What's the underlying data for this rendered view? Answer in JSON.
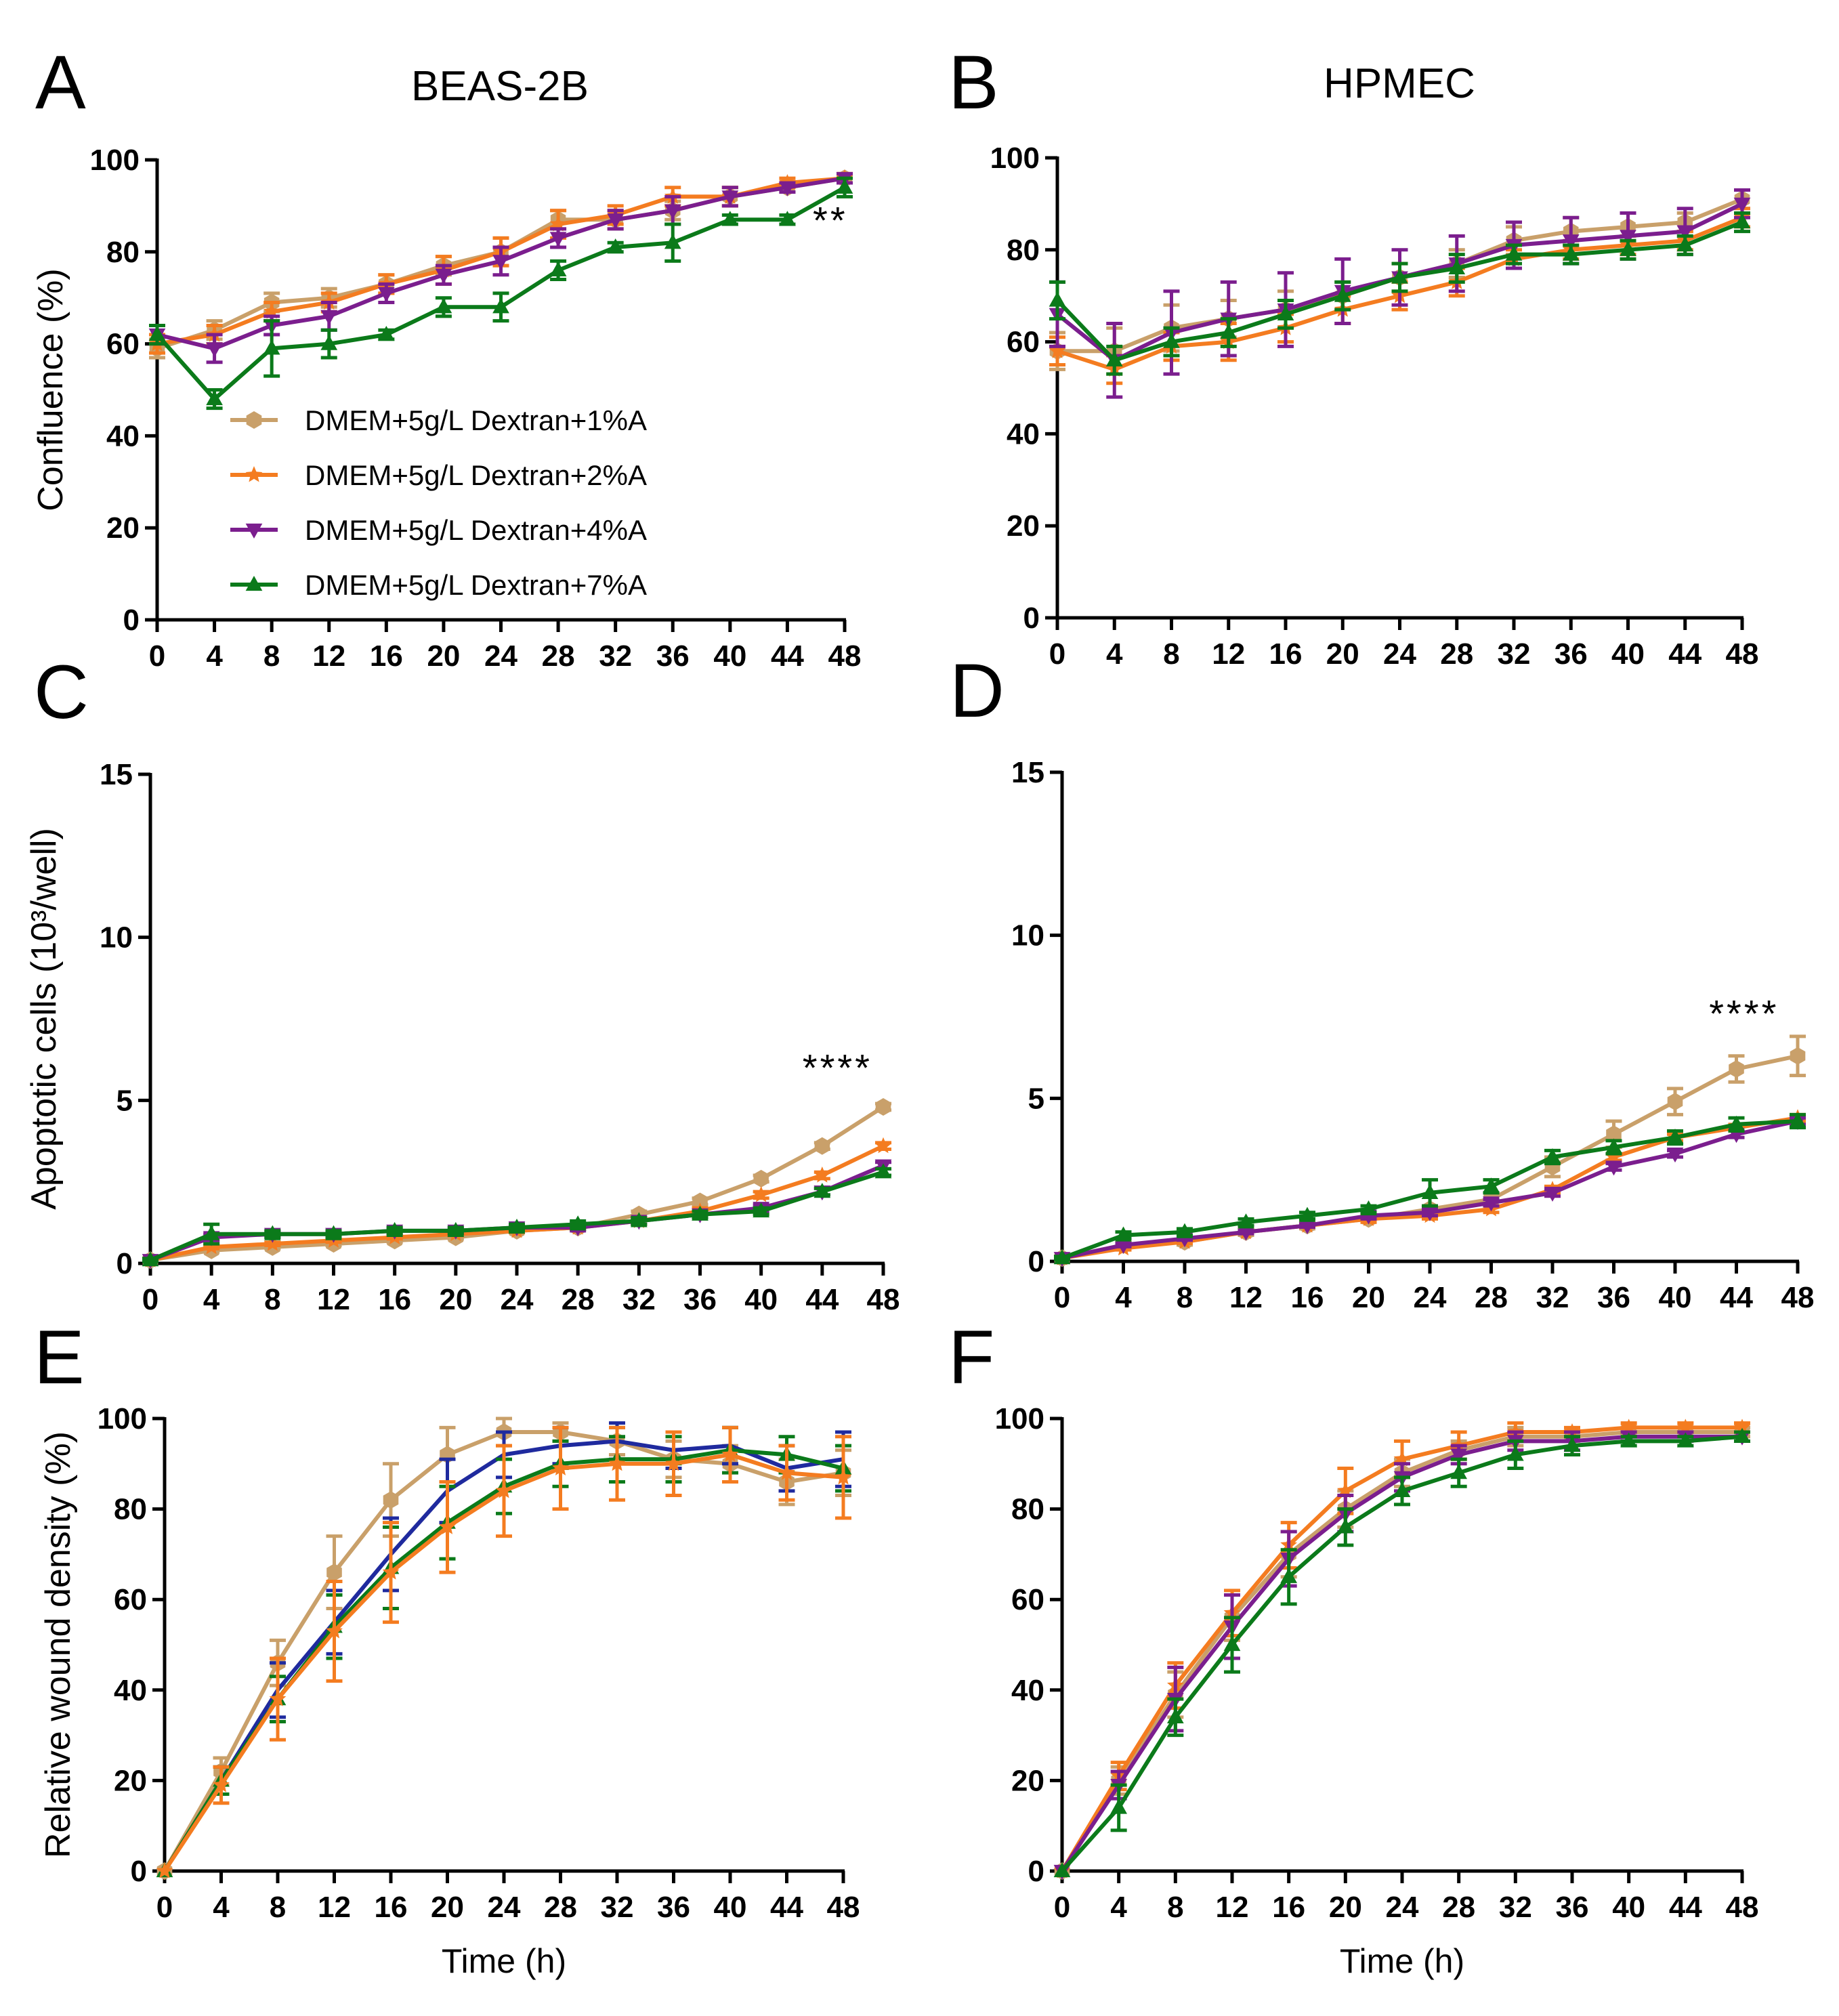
{
  "series_styles": [
    {
      "name": "DMEM+5g/L Dextran+1%A",
      "color": "#C9A06A",
      "marker": "hexagon"
    },
    {
      "name": "DMEM+5g/L Dextran+2%A",
      "color": "#F47C20",
      "marker": "star"
    },
    {
      "name": "DMEM+5g/L Dextran+4%A",
      "color": "#7B1E8E",
      "marker": "triangle-down"
    },
    {
      "name": "DMEM+5g/L Dextran+7%A",
      "color": "#0B7A1A",
      "marker": "triangle-up"
    }
  ],
  "extra_colors": {
    "blue_series": "#1F2A9E"
  },
  "chart_data": [
    {
      "id": "A",
      "letter": "A",
      "title": "BEAS-2B",
      "type": "line",
      "x": [
        0,
        4,
        8,
        12,
        16,
        20,
        24,
        28,
        32,
        36,
        40,
        44,
        48
      ],
      "xticks": [
        "0",
        "4",
        "8",
        "12",
        "16",
        "20",
        "24",
        "28",
        "32",
        "36",
        "40",
        "44",
        "48"
      ],
      "yticks": [
        "0",
        "20",
        "40",
        "60",
        "80",
        "100"
      ],
      "ylim": [
        0,
        100
      ],
      "xlim": [
        0,
        48
      ],
      "ylabel": "Confluence (%)",
      "xlabel": "",
      "annotation": {
        "text": "**",
        "x": 47,
        "y": 84
      },
      "legend": {
        "location": "lower-left",
        "entries": [
          "DMEM+5g/L Dextran+1%A",
          "DMEM+5g/L Dextran+2%A",
          "DMEM+5g/L Dextran+4%A",
          "DMEM+5g/L Dextran+7%A"
        ]
      },
      "series": [
        {
          "style": 0,
          "values": [
            59,
            63,
            69,
            70,
            73,
            77,
            80,
            87,
            87,
            89,
            92,
            94,
            96
          ],
          "err": [
            2,
            2,
            2,
            2,
            2,
            2,
            3,
            2,
            2,
            2,
            2,
            1,
            1
          ]
        },
        {
          "style": 1,
          "values": [
            60,
            62,
            67,
            69,
            73,
            76,
            80,
            86,
            88,
            92,
            92,
            95,
            96
          ],
          "err": [
            2,
            2,
            2,
            2,
            2,
            3,
            3,
            3,
            2,
            2,
            2,
            1,
            1
          ]
        },
        {
          "style": 2,
          "values": [
            62,
            59,
            64,
            66,
            71,
            75,
            78,
            83,
            87,
            89,
            92,
            94,
            96
          ],
          "err": [
            2,
            3,
            2,
            3,
            2,
            2,
            3,
            2,
            2,
            3,
            2,
            1,
            1
          ]
        },
        {
          "style": 3,
          "values": [
            62,
            48,
            59,
            60,
            62,
            68,
            68,
            76,
            81,
            82,
            87,
            87,
            94
          ],
          "err": [
            2,
            2,
            6,
            3,
            1,
            2,
            3,
            2,
            1,
            4,
            1,
            1,
            2
          ]
        }
      ]
    },
    {
      "id": "B",
      "letter": "B",
      "title": "HPMEC",
      "type": "line",
      "x": [
        0,
        4,
        8,
        12,
        16,
        20,
        24,
        28,
        32,
        36,
        40,
        44,
        48
      ],
      "xticks": [
        "0",
        "4",
        "8",
        "12",
        "16",
        "20",
        "24",
        "28",
        "32",
        "36",
        "40",
        "44",
        "48"
      ],
      "yticks": [
        "0",
        "20",
        "40",
        "60",
        "80",
        "100"
      ],
      "ylim": [
        0,
        100
      ],
      "xlim": [
        0,
        48
      ],
      "ylabel": "",
      "xlabel": "",
      "series": [
        {
          "style": 0,
          "values": [
            58,
            58,
            63,
            65,
            67,
            70,
            74,
            77,
            82,
            84,
            85,
            86,
            91
          ],
          "err": [
            4,
            5,
            5,
            4,
            4,
            3,
            3,
            3,
            3,
            3,
            3,
            2,
            2
          ]
        },
        {
          "style": 1,
          "values": [
            58,
            54,
            59,
            60,
            63,
            67,
            70,
            73,
            78,
            80,
            81,
            82,
            87
          ],
          "err": [
            3,
            3,
            3,
            4,
            3,
            3,
            3,
            3,
            2,
            2,
            2,
            2,
            2
          ]
        },
        {
          "style": 2,
          "values": [
            66,
            56,
            62,
            65,
            67,
            71,
            74,
            77,
            81,
            82,
            83,
            84,
            90
          ],
          "err": [
            7,
            8,
            9,
            8,
            8,
            7,
            6,
            6,
            5,
            5,
            5,
            5,
            3
          ]
        },
        {
          "style": 3,
          "values": [
            69,
            56,
            60,
            62,
            66,
            70,
            74,
            76,
            79,
            79,
            80,
            81,
            86
          ],
          "err": [
            4,
            3,
            3,
            3,
            3,
            3,
            3,
            3,
            2,
            2,
            2,
            2,
            2
          ]
        }
      ]
    },
    {
      "id": "C",
      "letter": "C",
      "title": "",
      "type": "line",
      "x": [
        0,
        4,
        8,
        12,
        16,
        20,
        24,
        28,
        32,
        36,
        40,
        44,
        48
      ],
      "xticks": [
        "0",
        "4",
        "8",
        "12",
        "16",
        "20",
        "24",
        "28",
        "32",
        "36",
        "40",
        "44",
        "48"
      ],
      "yticks": [
        "0",
        "5",
        "10",
        "15"
      ],
      "ylim": [
        0,
        15
      ],
      "xlim": [
        0,
        48
      ],
      "ylabel": "Apoptotic cells (10³/well)",
      "xlabel": "",
      "annotation": {
        "text": "****",
        "x": 45,
        "y": 5.6
      },
      "series": [
        {
          "style": 0,
          "values": [
            0.1,
            0.4,
            0.5,
            0.6,
            0.7,
            0.8,
            1.0,
            1.1,
            1.5,
            1.9,
            2.6,
            3.6,
            4.8
          ],
          "err": [
            0.05,
            0.05,
            0.05,
            0.05,
            0.05,
            0.05,
            0.05,
            0.05,
            0.1,
            0.1,
            0.1,
            0.1,
            0.1
          ]
        },
        {
          "style": 1,
          "values": [
            0.1,
            0.5,
            0.6,
            0.7,
            0.8,
            0.9,
            1.0,
            1.1,
            1.3,
            1.6,
            2.1,
            2.7,
            3.6
          ],
          "err": [
            0.05,
            0.05,
            0.05,
            0.05,
            0.05,
            0.05,
            0.05,
            0.05,
            0.1,
            0.1,
            0.1,
            0.1,
            0.1
          ]
        },
        {
          "style": 2,
          "values": [
            0.1,
            0.8,
            0.9,
            0.9,
            1.0,
            1.0,
            1.1,
            1.1,
            1.3,
            1.5,
            1.7,
            2.2,
            3.0
          ],
          "err": [
            0.05,
            0.1,
            0.1,
            0.1,
            0.1,
            0.1,
            0.1,
            0.1,
            0.1,
            0.1,
            0.1,
            0.1,
            0.1
          ]
        },
        {
          "style": 3,
          "values": [
            0.1,
            0.9,
            0.9,
            0.9,
            1.0,
            1.0,
            1.1,
            1.2,
            1.3,
            1.5,
            1.6,
            2.2,
            2.8
          ],
          "err": [
            0.05,
            0.3,
            0.1,
            0.1,
            0.1,
            0.1,
            0.1,
            0.1,
            0.1,
            0.1,
            0.1,
            0.1,
            0.1
          ]
        }
      ]
    },
    {
      "id": "D",
      "letter": "D",
      "title": "",
      "type": "line",
      "x": [
        0,
        4,
        8,
        12,
        16,
        20,
        24,
        28,
        32,
        36,
        40,
        44,
        48
      ],
      "xticks": [
        "0",
        "4",
        "8",
        "12",
        "16",
        "20",
        "24",
        "28",
        "32",
        "36",
        "40",
        "44",
        "48"
      ],
      "yticks": [
        "0",
        "5",
        "10",
        "15"
      ],
      "ylim": [
        0,
        15
      ],
      "xlim": [
        0,
        48
      ],
      "ylabel": "",
      "xlabel": "",
      "annotation": {
        "text": "****",
        "x": 44.5,
        "y": 7.2
      },
      "series": [
        {
          "style": 0,
          "values": [
            0.1,
            0.5,
            0.6,
            0.9,
            1.1,
            1.3,
            1.6,
            1.9,
            2.9,
            3.9,
            4.9,
            5.9,
            6.3
          ],
          "err": [
            0.05,
            0.1,
            0.1,
            0.1,
            0.1,
            0.1,
            0.1,
            0.2,
            0.3,
            0.4,
            0.4,
            0.4,
            0.6
          ]
        },
        {
          "style": 1,
          "values": [
            0.1,
            0.4,
            0.6,
            0.9,
            1.1,
            1.3,
            1.4,
            1.6,
            2.2,
            3.2,
            3.8,
            4.1,
            4.4
          ],
          "err": [
            0.05,
            0.05,
            0.05,
            0.05,
            0.05,
            0.1,
            0.1,
            0.1,
            0.1,
            0.1,
            0.1,
            0.1,
            0.1
          ]
        },
        {
          "style": 2,
          "values": [
            0.1,
            0.5,
            0.7,
            0.9,
            1.1,
            1.4,
            1.5,
            1.8,
            2.1,
            2.9,
            3.3,
            3.9,
            4.3
          ],
          "err": [
            0.05,
            0.05,
            0.05,
            0.05,
            0.05,
            0.1,
            0.1,
            0.1,
            0.1,
            0.1,
            0.1,
            0.1,
            0.1
          ]
        },
        {
          "style": 3,
          "values": [
            0.1,
            0.8,
            0.9,
            1.2,
            1.4,
            1.6,
            2.1,
            2.3,
            3.2,
            3.5,
            3.8,
            4.2,
            4.3
          ],
          "err": [
            0.05,
            0.1,
            0.1,
            0.1,
            0.1,
            0.1,
            0.4,
            0.2,
            0.2,
            0.2,
            0.2,
            0.2,
            0.2
          ]
        }
      ]
    },
    {
      "id": "E",
      "letter": "E",
      "title": "",
      "type": "line",
      "x": [
        0,
        4,
        8,
        12,
        16,
        20,
        24,
        28,
        32,
        36,
        40,
        44,
        48
      ],
      "xticks": [
        "0",
        "4",
        "8",
        "12",
        "16",
        "20",
        "24",
        "28",
        "32",
        "36",
        "40",
        "44",
        "48"
      ],
      "yticks": [
        "0",
        "20",
        "40",
        "60",
        "80",
        "100"
      ],
      "ylim": [
        0,
        100
      ],
      "xlim": [
        0,
        48
      ],
      "ylabel": "Relative wound density (%)",
      "xlabel": "Time (h)",
      "series": [
        {
          "style": 0,
          "values": [
            0,
            22,
            46,
            66,
            82,
            92,
            97,
            97,
            95,
            91,
            90,
            86,
            88
          ],
          "err": [
            0,
            3,
            5,
            8,
            8,
            6,
            3,
            2,
            3,
            4,
            4,
            5,
            5
          ]
        },
        {
          "style": "blue",
          "values": [
            0,
            20,
            40,
            55,
            70,
            84,
            92,
            94,
            95,
            93,
            94,
            89,
            91
          ],
          "err": [
            0,
            3,
            6,
            7,
            8,
            7,
            5,
            4,
            4,
            4,
            4,
            5,
            6
          ]
        },
        {
          "style": 3,
          "values": [
            0,
            20,
            38,
            54,
            67,
            77,
            85,
            90,
            91,
            91,
            93,
            92,
            89
          ],
          "err": [
            0,
            3,
            5,
            7,
            9,
            8,
            6,
            5,
            5,
            5,
            5,
            4,
            5
          ]
        },
        {
          "style": 1,
          "values": [
            0,
            19,
            38,
            53,
            66,
            76,
            84,
            89,
            90,
            90,
            92,
            88,
            87
          ],
          "err": [
            0,
            4,
            9,
            11,
            11,
            10,
            10,
            9,
            8,
            7,
            6,
            6,
            9
          ]
        }
      ]
    },
    {
      "id": "F",
      "letter": "F",
      "title": "",
      "type": "line",
      "x": [
        0,
        4,
        8,
        12,
        16,
        20,
        24,
        28,
        32,
        36,
        40,
        44,
        48
      ],
      "xticks": [
        "0",
        "4",
        "8",
        "12",
        "16",
        "20",
        "24",
        "28",
        "32",
        "36",
        "40",
        "44",
        "48"
      ],
      "yticks": [
        "0",
        "20",
        "40",
        "60",
        "80",
        "100"
      ],
      "ylim": [
        0,
        100
      ],
      "xlim": [
        0,
        48
      ],
      "ylabel": "",
      "xlabel": "Time (h)",
      "series": [
        {
          "style": 0,
          "values": [
            0,
            20,
            39,
            56,
            70,
            80,
            88,
            93,
            96,
            96,
            97,
            97,
            97
          ],
          "err": [
            0,
            3,
            5,
            5,
            5,
            4,
            3,
            2,
            2,
            1,
            1,
            1,
            1
          ]
        },
        {
          "style": 1,
          "values": [
            0,
            21,
            41,
            57,
            72,
            84,
            91,
            94,
            97,
            97,
            98,
            98,
            98
          ],
          "err": [
            0,
            3,
            5,
            5,
            5,
            5,
            4,
            3,
            2,
            1,
            1,
            1,
            1
          ]
        },
        {
          "style": 2,
          "values": [
            0,
            19,
            38,
            54,
            69,
            79,
            87,
            92,
            95,
            95,
            96,
            96,
            96
          ],
          "err": [
            0,
            3,
            7,
            7,
            6,
            4,
            3,
            2,
            2,
            2,
            1,
            1,
            1
          ]
        },
        {
          "style": 3,
          "values": [
            0,
            14,
            34,
            50,
            65,
            76,
            84,
            88,
            92,
            94,
            95,
            95,
            96
          ],
          "err": [
            0,
            5,
            4,
            6,
            6,
            4,
            3,
            3,
            3,
            2,
            1,
            1,
            1
          ]
        }
      ]
    }
  ]
}
